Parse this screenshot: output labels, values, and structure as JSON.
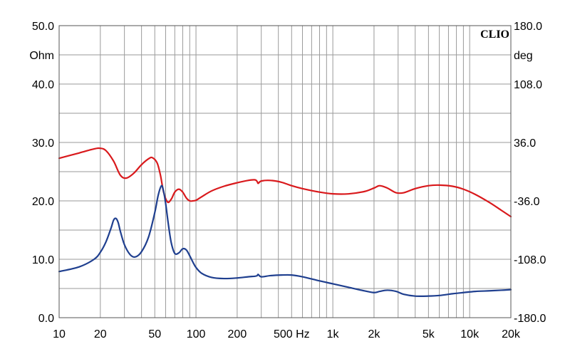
{
  "chart_data": {
    "type": "line",
    "brand": "CLIO",
    "x_scale": "log",
    "xlim": [
      10,
      20000
    ],
    "x_ticks": [
      {
        "value": 10,
        "label": "10"
      },
      {
        "value": 20,
        "label": "20"
      },
      {
        "value": 50,
        "label": "50"
      },
      {
        "value": 100,
        "label": "100"
      },
      {
        "value": 200,
        "label": "200"
      },
      {
        "value": 500,
        "label": "500 Hz"
      },
      {
        "value": 1000,
        "label": "1k"
      },
      {
        "value": 2000,
        "label": "2k"
      },
      {
        "value": 5000,
        "label": "5k"
      },
      {
        "value": 10000,
        "label": "10k"
      },
      {
        "value": 20000,
        "label": "20k"
      }
    ],
    "y_left": {
      "unit": "Ohm",
      "ylim": [
        0,
        50
      ],
      "ticks": [
        {
          "value": 50,
          "label": "50.0"
        },
        {
          "value": 40,
          "label": "40.0"
        },
        {
          "value": 30,
          "label": "30.0"
        },
        {
          "value": 20,
          "label": "20.0"
        },
        {
          "value": 10,
          "label": "10.0"
        },
        {
          "value": 0,
          "label": "0.0"
        }
      ]
    },
    "y_right": {
      "unit": "deg",
      "ylim": [
        -180,
        180
      ],
      "ticks": [
        {
          "value": 180,
          "label": "180.0"
        },
        {
          "value": 108,
          "label": "108.0"
        },
        {
          "value": 36,
          "label": "36.0"
        },
        {
          "value": -36,
          "label": "-36.0"
        },
        {
          "value": -108,
          "label": "-108.0"
        },
        {
          "value": -180,
          "label": "-180.0"
        }
      ]
    },
    "grid": true,
    "series": [
      {
        "color": "#d9191c",
        "axis": "left",
        "x": [
          10,
          14,
          18,
          20,
          22,
          25,
          28,
          31,
          35,
          40,
          45,
          48,
          52,
          55,
          58,
          62,
          66,
          70,
          75,
          80,
          85,
          90,
          95,
          100,
          110,
          130,
          160,
          200,
          240,
          270,
          280,
          285,
          300,
          350,
          420,
          500,
          600,
          800,
          1000,
          1300,
          1700,
          2000,
          2200,
          2500,
          2900,
          3300,
          4000,
          5000,
          6000,
          7500,
          9000,
          11000,
          14000,
          17000,
          20000
        ],
        "values": [
          27.3,
          28.2,
          28.9,
          29.0,
          28.6,
          26.8,
          24.4,
          23.9,
          24.7,
          26.2,
          27.2,
          27.4,
          26.5,
          24.4,
          21.5,
          19.8,
          20.3,
          21.5,
          22.0,
          21.5,
          20.5,
          20.0,
          20.0,
          20.1,
          20.7,
          21.7,
          22.5,
          23.1,
          23.5,
          23.6,
          23.3,
          23.0,
          23.4,
          23.5,
          23.2,
          22.6,
          22.1,
          21.5,
          21.2,
          21.2,
          21.6,
          22.2,
          22.6,
          22.2,
          21.4,
          21.4,
          22.1,
          22.6,
          22.7,
          22.5,
          22.0,
          21.1,
          19.7,
          18.4,
          17.3
        ]
      },
      {
        "color": "#1f3f8f",
        "axis": "left",
        "x": [
          10,
          14,
          18,
          20,
          22,
          24,
          25,
          26,
          27,
          28,
          30,
          33,
          36,
          40,
          45,
          50,
          53,
          56,
          58,
          60,
          63,
          66,
          70,
          75,
          80,
          85,
          90,
          95,
          100,
          110,
          130,
          160,
          200,
          240,
          270,
          280,
          285,
          300,
          350,
          420,
          500,
          600,
          800,
          1000,
          1300,
          1700,
          2000,
          2200,
          2500,
          2900,
          3300,
          4000,
          5000,
          6000,
          7500,
          9000,
          11000,
          14000,
          17000,
          20000
        ],
        "values": [
          7.9,
          8.7,
          10.0,
          11.2,
          13.0,
          15.4,
          16.7,
          17.0,
          16.3,
          14.8,
          12.5,
          10.8,
          10.4,
          11.3,
          13.8,
          18.0,
          21.0,
          22.6,
          21.6,
          19.6,
          15.8,
          12.8,
          11.0,
          11.1,
          11.8,
          11.6,
          10.6,
          9.5,
          8.6,
          7.6,
          6.9,
          6.7,
          6.8,
          7.0,
          7.1,
          7.2,
          7.4,
          7.0,
          7.2,
          7.3,
          7.3,
          7.0,
          6.3,
          5.8,
          5.2,
          4.6,
          4.3,
          4.5,
          4.7,
          4.5,
          4.0,
          3.7,
          3.7,
          3.8,
          4.1,
          4.3,
          4.5,
          4.6,
          4.7,
          4.8
        ]
      }
    ]
  }
}
